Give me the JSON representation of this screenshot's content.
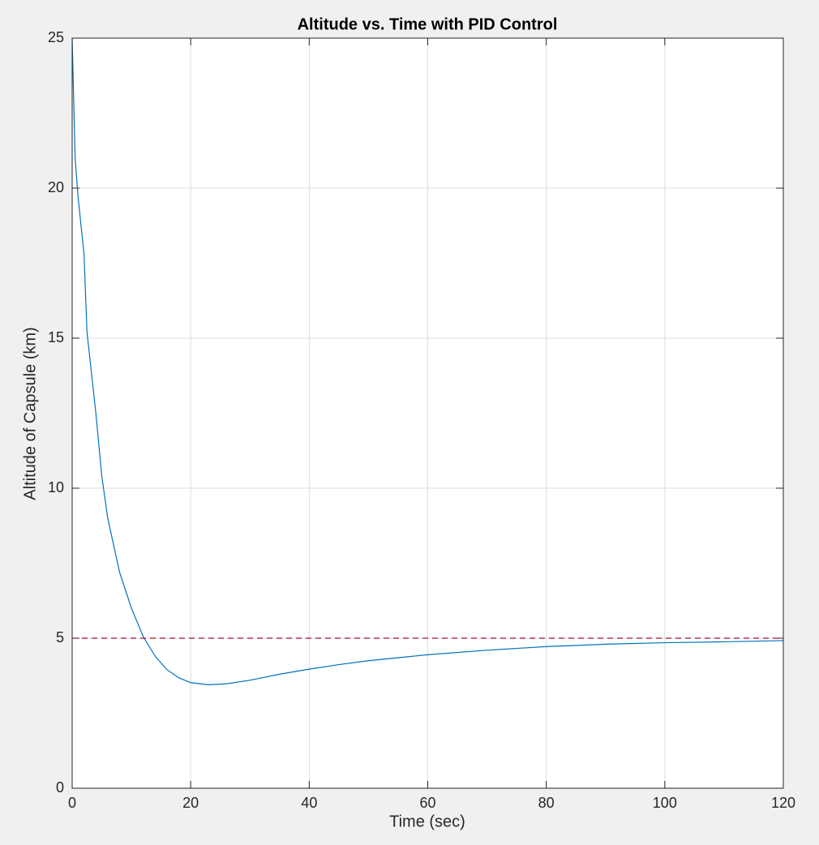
{
  "chart_data": {
    "type": "line",
    "title": "Altitude vs. Time with PID Control",
    "x_label": "Time (sec)",
    "y_label": "Altitude of Capsule (km)",
    "series": [
      {
        "color": "#0072bd",
        "line_style": "solid",
        "x": [
          0,
          0.5,
          1,
          2,
          2.5,
          4,
          5,
          6,
          8,
          10,
          12,
          14,
          16,
          18,
          20,
          23,
          26,
          30,
          35,
          40,
          45,
          50,
          60,
          70,
          80,
          90,
          100,
          110,
          120
        ],
        "values": [
          25,
          21,
          19.7,
          17.8,
          15.2,
          12.5,
          10.4,
          9,
          7.2,
          6,
          5.05,
          4.4,
          3.95,
          3.68,
          3.52,
          3.45,
          3.48,
          3.6,
          3.8,
          3.97,
          4.12,
          4.25,
          4.45,
          4.6,
          4.72,
          4.8,
          4.85,
          4.88,
          4.92
        ]
      },
      {
        "color": "#a2142f",
        "line_style": "dashed",
        "x": [
          0,
          120
        ],
        "values": [
          5,
          5
        ]
      }
    ],
    "xlim": [
      0,
      120
    ],
    "ylim": [
      0,
      25
    ],
    "xticks": [
      0,
      20,
      40,
      60,
      80,
      100,
      120
    ],
    "yticks": [
      0,
      5,
      10,
      15,
      20,
      25
    ],
    "grid": true
  }
}
